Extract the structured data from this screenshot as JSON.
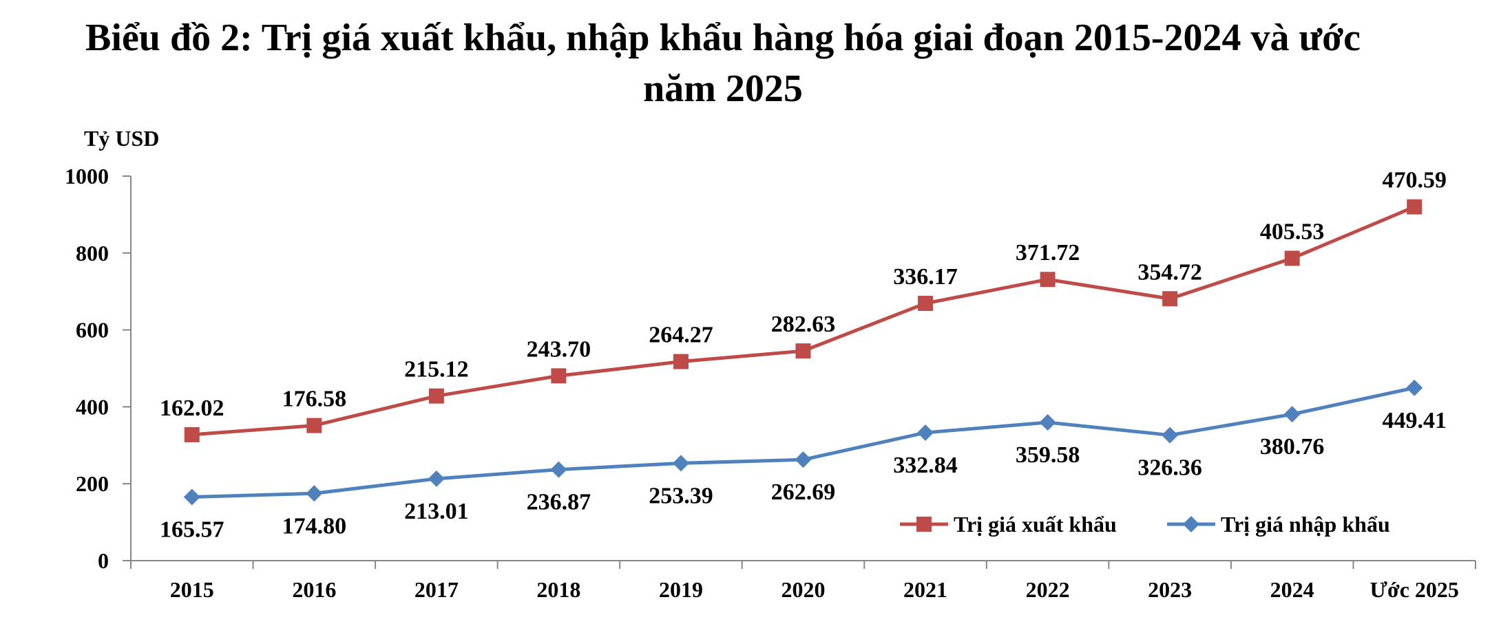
{
  "chart_data": {
    "type": "line",
    "title_line1": "Biểu đồ 2: Trị giá xuất khẩu, nhập khẩu hàng hóa giai đoạn 2015-2024 và ước",
    "title_line2": "năm 2025",
    "ylabel": "Tỷ USD",
    "xlabel": "",
    "categories": [
      "2015",
      "2016",
      "2017",
      "2018",
      "2019",
      "2020",
      "2021",
      "2022",
      "2023",
      "2024",
      "Ước 2025"
    ],
    "ylim": [
      0,
      1000
    ],
    "yticks": [
      "0",
      "200",
      "400",
      "600",
      "800",
      "1000"
    ],
    "grid": false,
    "legend_position": "bottom-right",
    "series": [
      {
        "name": "Trị giá xuất khẩu",
        "color": "#BE4B48",
        "marker": "square",
        "stacked_on_previous": true,
        "values": [
          162.02,
          176.58,
          215.12,
          243.7,
          264.27,
          282.63,
          336.17,
          371.72,
          354.72,
          405.53,
          470.59
        ],
        "labels": [
          "162.02",
          "176.58",
          "215.12",
          "243.70",
          "264.27",
          "282.63",
          "336.17",
          "371.72",
          "354.72",
          "405.53",
          "470.59"
        ]
      },
      {
        "name": "Trị giá nhập khẩu",
        "color": "#4F81BD",
        "marker": "diamond",
        "values": [
          165.57,
          174.8,
          213.01,
          236.87,
          253.39,
          262.69,
          332.84,
          359.58,
          326.36,
          380.76,
          449.41
        ],
        "labels": [
          "165.57",
          "174.80",
          "213.01",
          "236.87",
          "253.39",
          "262.69",
          "332.84",
          "359.58",
          "326.36",
          "380.76",
          "449.41"
        ]
      }
    ]
  }
}
